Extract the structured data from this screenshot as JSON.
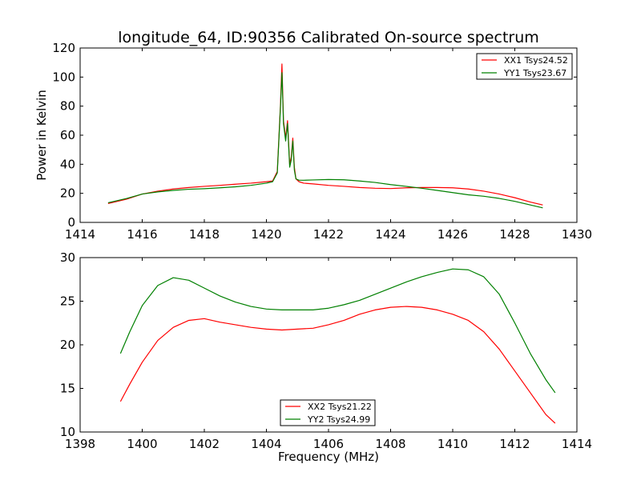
{
  "chart_data": [
    {
      "type": "line",
      "title": "longitude_64, ID:90356 Calibrated On-source spectrum",
      "xlabel": "",
      "ylabel": "Power in Kelvin",
      "xlim": [
        1414,
        1430
      ],
      "ylim": [
        0,
        120
      ],
      "xticks": [
        "1414",
        "1416",
        "1418",
        "1420",
        "1422",
        "1424",
        "1426",
        "1428",
        "1430"
      ],
      "yticks": [
        "0",
        "20",
        "40",
        "60",
        "80",
        "100",
        "120"
      ],
      "grid": false,
      "legend_position": "top-right",
      "series": [
        {
          "name": "XX1 Tsys24.52",
          "color": "#ff0000",
          "x": [
            1414.9,
            1415.5,
            1416.0,
            1416.5,
            1417.0,
            1417.5,
            1418.0,
            1418.5,
            1419.0,
            1419.5,
            1420.0,
            1420.2,
            1420.35,
            1420.45,
            1420.5,
            1420.55,
            1420.62,
            1420.68,
            1420.75,
            1420.8,
            1420.85,
            1420.9,
            1420.95,
            1421.05,
            1421.2,
            1421.5,
            1422.0,
            1422.5,
            1423.0,
            1423.5,
            1424.0,
            1424.5,
            1425.0,
            1425.5,
            1426.0,
            1426.5,
            1427.0,
            1427.5,
            1428.0,
            1428.5,
            1428.9
          ],
          "y": [
            13,
            16,
            19.5,
            21.5,
            23,
            24,
            24.8,
            25.5,
            26.3,
            27,
            28,
            28.5,
            35,
            80,
            109,
            70,
            58,
            70,
            40,
            45,
            58,
            38,
            30,
            28,
            27,
            26.5,
            25.5,
            24.8,
            24,
            23.5,
            23.3,
            23.8,
            24,
            24,
            23.8,
            23,
            21.5,
            19.5,
            17,
            14,
            12
          ]
        },
        {
          "name": "YY1 Tsys23.67",
          "color": "#008000",
          "x": [
            1414.9,
            1415.5,
            1416.0,
            1416.5,
            1417.0,
            1417.5,
            1418.0,
            1418.5,
            1419.0,
            1419.5,
            1420.0,
            1420.2,
            1420.35,
            1420.45,
            1420.5,
            1420.55,
            1420.62,
            1420.68,
            1420.75,
            1420.8,
            1420.85,
            1420.9,
            1420.95,
            1421.05,
            1421.2,
            1421.5,
            1422.0,
            1422.5,
            1423.0,
            1423.5,
            1424.0,
            1424.5,
            1425.0,
            1425.5,
            1426.0,
            1426.5,
            1427.0,
            1427.5,
            1428.0,
            1428.5,
            1428.9
          ],
          "y": [
            13.5,
            16.5,
            19.5,
            21,
            22,
            22.8,
            23.2,
            23.8,
            24.5,
            25.5,
            27,
            28,
            34,
            78,
            103,
            68,
            56,
            68,
            38,
            43,
            56,
            36,
            30,
            29,
            29,
            29.2,
            29.5,
            29.3,
            28.5,
            27.5,
            26,
            24.8,
            23.5,
            22,
            20.5,
            19,
            18,
            16.5,
            14.5,
            12,
            10
          ]
        }
      ]
    },
    {
      "type": "line",
      "title": "",
      "xlabel": "Frequency (MHz)",
      "ylabel": "",
      "xlim": [
        1398,
        1414
      ],
      "ylim": [
        10,
        30
      ],
      "xticks": [
        "1398",
        "1400",
        "1402",
        "1404",
        "1406",
        "1408",
        "1410",
        "1412",
        "1414"
      ],
      "yticks": [
        "10",
        "15",
        "20",
        "25",
        "30"
      ],
      "grid": false,
      "legend_position": "bottom-center",
      "series": [
        {
          "name": "XX2 Tsys21.22",
          "color": "#ff0000",
          "x": [
            1399.3,
            1399.6,
            1400.0,
            1400.5,
            1401.0,
            1401.5,
            1402.0,
            1402.5,
            1403.0,
            1403.5,
            1404.0,
            1404.5,
            1405.0,
            1405.5,
            1406.0,
            1406.5,
            1407.0,
            1407.5,
            1408.0,
            1408.5,
            1409.0,
            1409.5,
            1410.0,
            1410.5,
            1411.0,
            1411.5,
            1412.0,
            1412.5,
            1413.0,
            1413.3
          ],
          "y": [
            13.5,
            15.5,
            18,
            20.5,
            22,
            22.8,
            23,
            22.6,
            22.3,
            22.0,
            21.8,
            21.7,
            21.8,
            21.9,
            22.3,
            22.8,
            23.5,
            24.0,
            24.3,
            24.4,
            24.3,
            24.0,
            23.5,
            22.8,
            21.5,
            19.5,
            17.0,
            14.5,
            12.0,
            11.0
          ]
        },
        {
          "name": "YY2 Tsys24.99",
          "color": "#008000",
          "x": [
            1399.3,
            1399.6,
            1400.0,
            1400.5,
            1401.0,
            1401.5,
            1402.0,
            1402.5,
            1403.0,
            1403.5,
            1404.0,
            1404.5,
            1405.0,
            1405.5,
            1406.0,
            1406.5,
            1407.0,
            1407.5,
            1408.0,
            1408.5,
            1409.0,
            1409.5,
            1410.0,
            1410.5,
            1411.0,
            1411.5,
            1412.0,
            1412.5,
            1413.0,
            1413.3
          ],
          "y": [
            19,
            21.5,
            24.5,
            26.8,
            27.7,
            27.4,
            26.5,
            25.6,
            24.9,
            24.4,
            24.1,
            24.0,
            24.0,
            24.0,
            24.2,
            24.6,
            25.1,
            25.8,
            26.5,
            27.2,
            27.8,
            28.3,
            28.7,
            28.6,
            27.8,
            25.8,
            22.5,
            19.0,
            16.0,
            14.5
          ]
        }
      ]
    }
  ]
}
